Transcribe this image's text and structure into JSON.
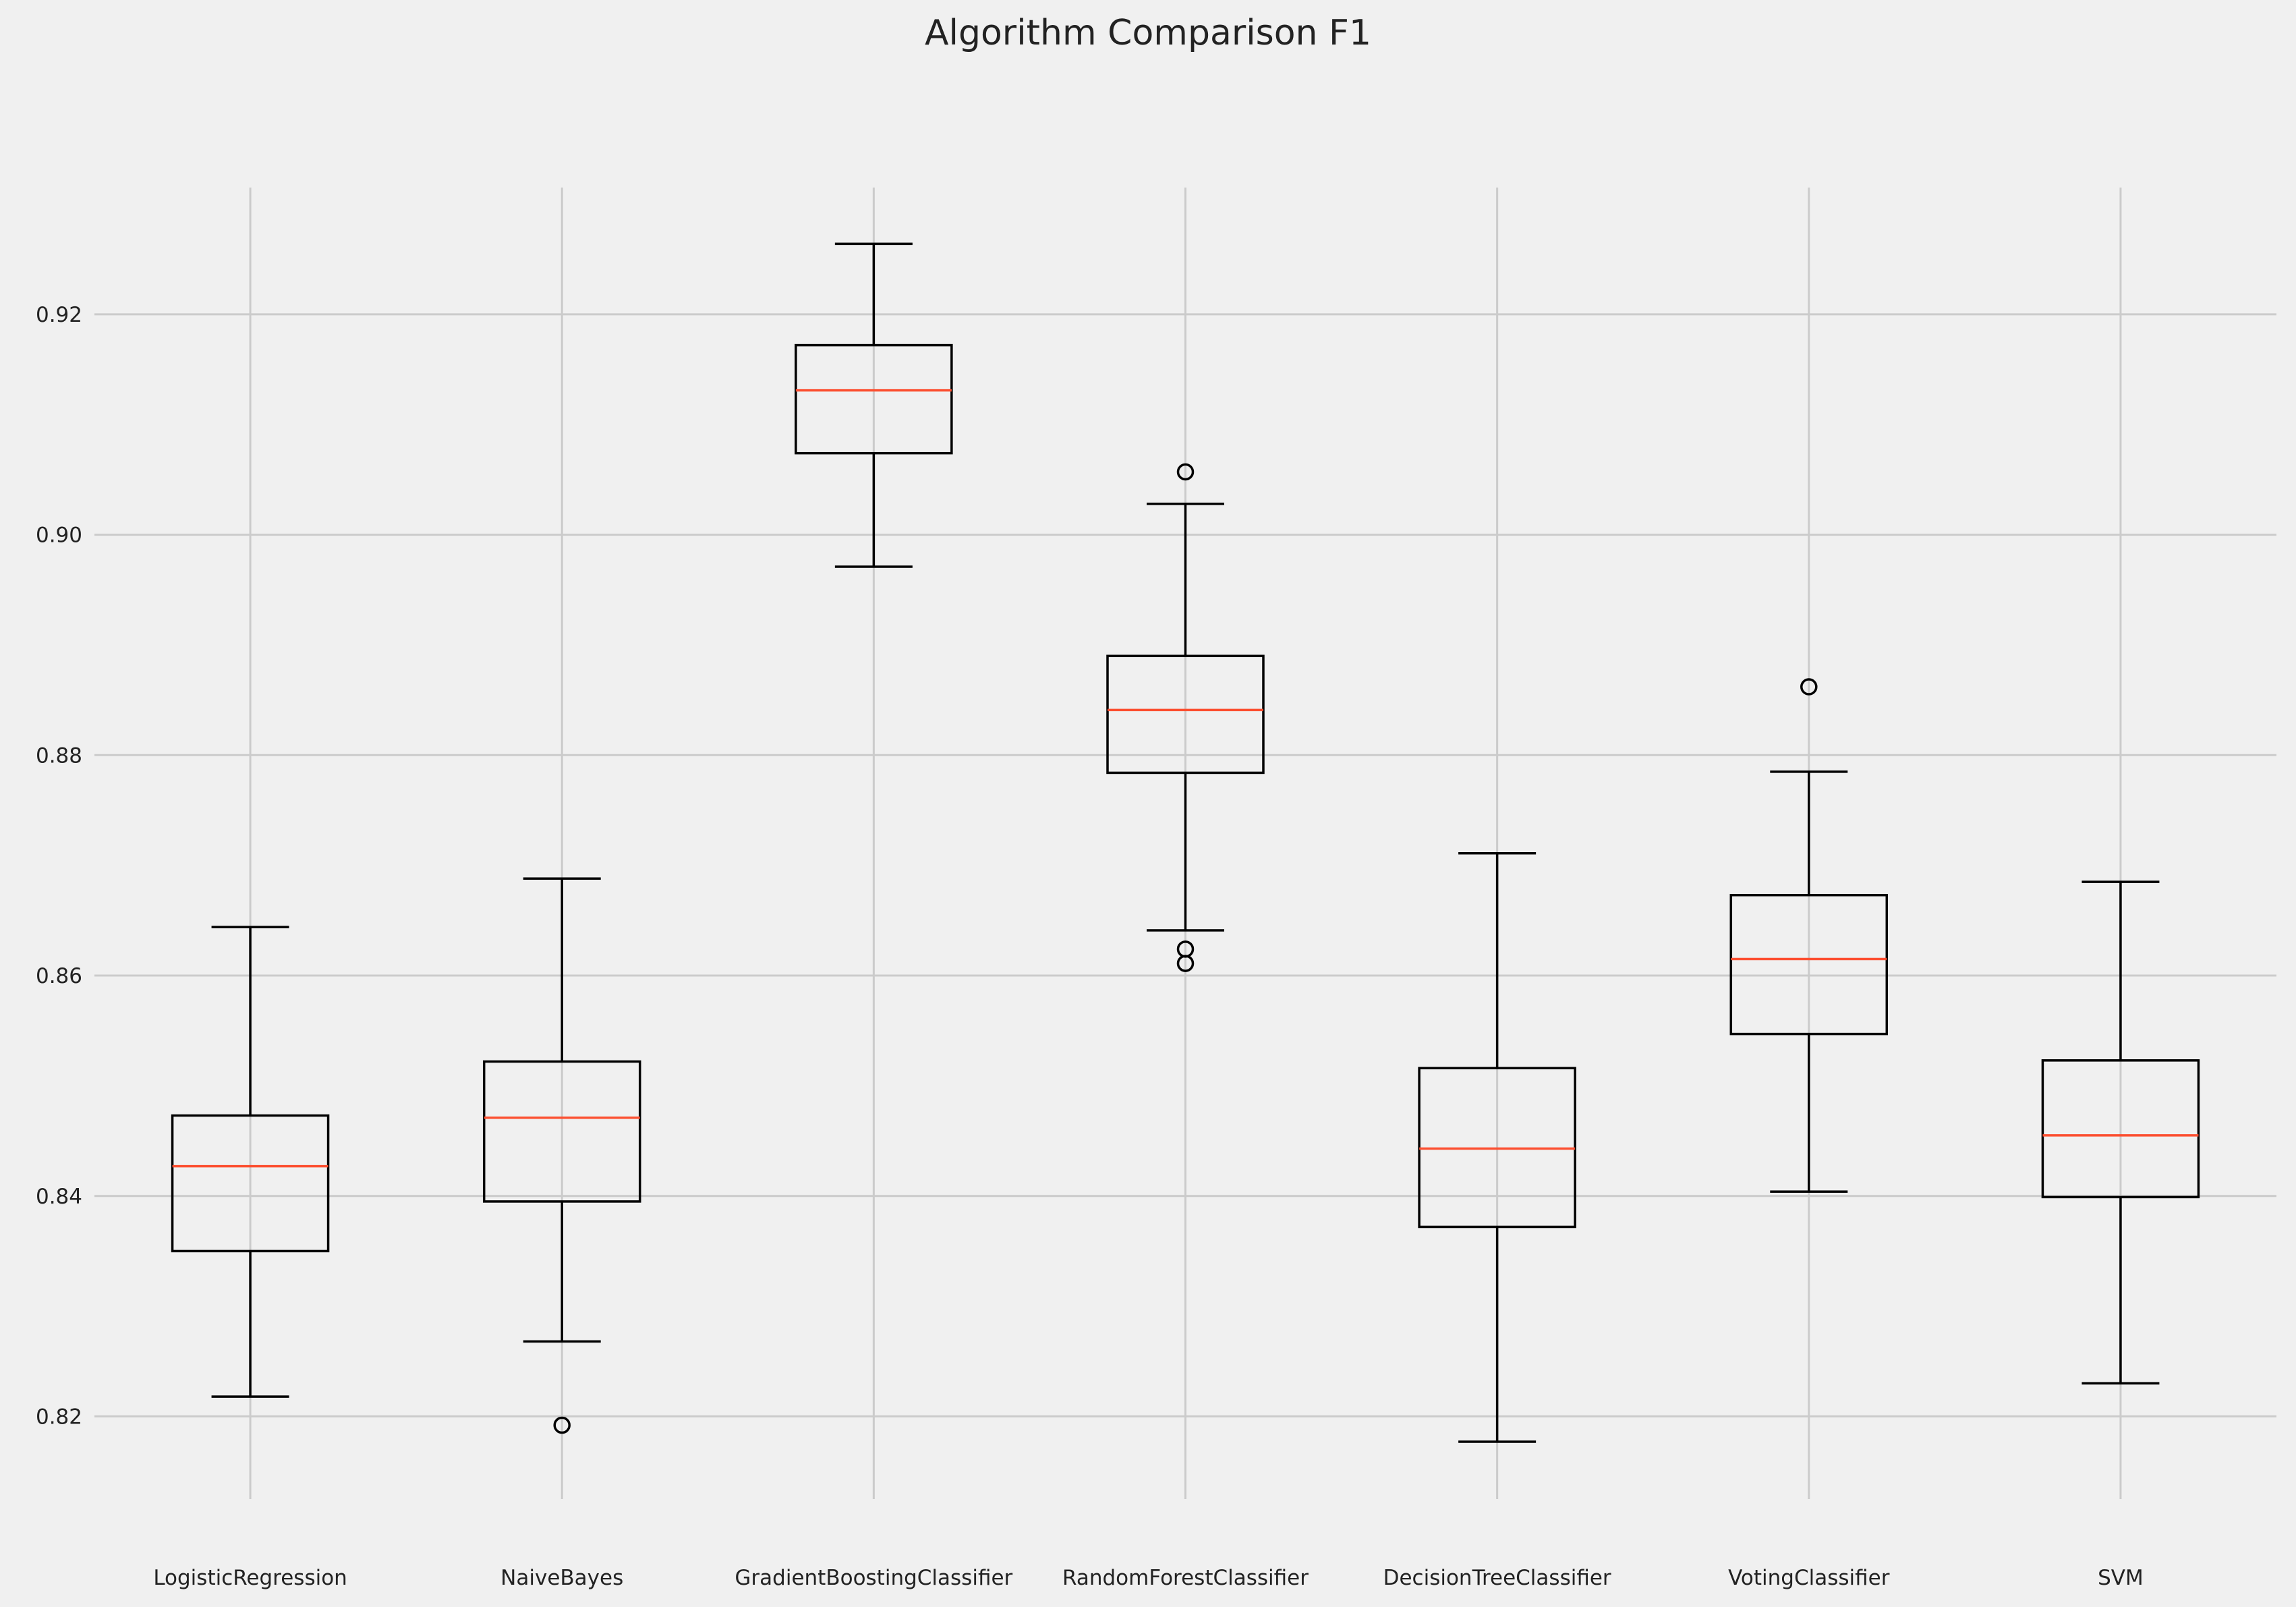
{
  "chart_data": {
    "type": "box",
    "title": "Algorithm Comparison F1",
    "xlabel": "",
    "ylabel": "",
    "ylim": [
      0.8125,
      0.9315
    ],
    "yticks": [
      0.82,
      0.84,
      0.86,
      0.88,
      0.9,
      0.92
    ],
    "ytick_labels": [
      "0.82",
      "0.84",
      "0.86",
      "0.88",
      "0.90",
      "0.92"
    ],
    "grid": true,
    "colors": {
      "background": "#f0f0f0",
      "grid": "#cbcbcb",
      "box": "#000000",
      "median": "#fc4f30",
      "text": "#222222"
    },
    "categories": [
      "LogisticRegression",
      "NaiveBayes",
      "GradientBoostingClassifier",
      "RandomForestClassifier",
      "DecisionTreeClassifier",
      "VotingClassifier",
      "SVM"
    ],
    "boxes": [
      {
        "whislo": 0.8218,
        "q1": 0.835,
        "med": 0.8427,
        "q3": 0.8473,
        "whishi": 0.8644,
        "fliers": []
      },
      {
        "whislo": 0.8268,
        "q1": 0.8395,
        "med": 0.8471,
        "q3": 0.8522,
        "whishi": 0.8688,
        "fliers": [
          0.8192
        ]
      },
      {
        "whislo": 0.8971,
        "q1": 0.9074,
        "med": 0.9131,
        "q3": 0.9172,
        "whishi": 0.9264,
        "fliers": []
      },
      {
        "whislo": 0.8641,
        "q1": 0.8784,
        "med": 0.8841,
        "q3": 0.889,
        "whishi": 0.9028,
        "fliers": [
          0.9057,
          0.8624,
          0.8611
        ]
      },
      {
        "whislo": 0.8177,
        "q1": 0.8372,
        "med": 0.8443,
        "q3": 0.8516,
        "whishi": 0.8711,
        "fliers": []
      },
      {
        "whislo": 0.8404,
        "q1": 0.8547,
        "med": 0.8615,
        "q3": 0.8673,
        "whishi": 0.8785,
        "fliers": [
          0.8862
        ]
      },
      {
        "whislo": 0.823,
        "q1": 0.8399,
        "med": 0.8455,
        "q3": 0.8523,
        "whishi": 0.8685,
        "fliers": []
      }
    ]
  }
}
